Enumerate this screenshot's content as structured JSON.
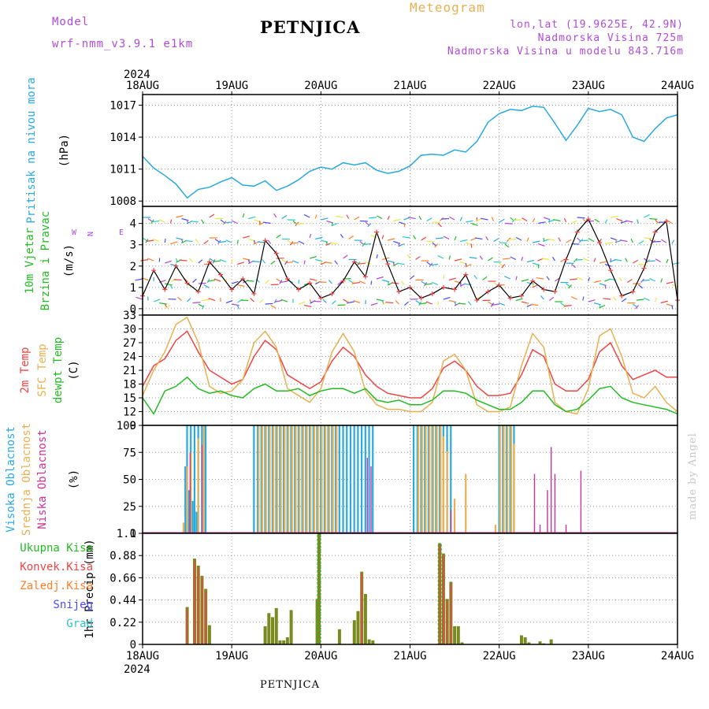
{
  "header": {
    "model_label": "Model",
    "model_name": "wrf-nmm_v3.9.1 e1km",
    "station": "PETNJICA",
    "chart_kind": "Meteogram",
    "lonlat": "lon,lat (19.9625E, 42.9N)",
    "elevation": "Nadmorska Visina 725m",
    "model_elevation": "Nadmorska Visina u modelu 843.716m",
    "credit": "made by Angel",
    "footer_station": "PETNJICA",
    "colors": {
      "model": "#b04ad8",
      "title": "#e8b050",
      "info": "#b04ad8",
      "credit": "#c8c8c8"
    }
  },
  "time_axis": {
    "year": "2024",
    "ticks": [
      "18AUG",
      "19AUG",
      "20AUG",
      "21AUG",
      "22AUG",
      "23AUG",
      "24AUG"
    ],
    "hours_total": 144
  },
  "chart_data": [
    {
      "id": "pressure",
      "type": "line",
      "ylabel_lines": [
        {
          "text": "Pritisak na nivou mora",
          "color": "#29a9e0"
        },
        {
          "text": "(hPa)",
          "color": "#000000"
        }
      ],
      "ylim": [
        1007.5,
        1018
      ],
      "yticks": [
        1008,
        1011,
        1014,
        1017
      ],
      "series": [
        {
          "color": "#29a9e0",
          "x": [
            0,
            3,
            6,
            9,
            12,
            15,
            18,
            21,
            24,
            27,
            30,
            33,
            36,
            39,
            42,
            45,
            48,
            51,
            54,
            57,
            60,
            63,
            66,
            69,
            72,
            75,
            78,
            81,
            84,
            87,
            90,
            93,
            96,
            99,
            102,
            105,
            108,
            111,
            114,
            117,
            120,
            123,
            126,
            129,
            132,
            135,
            138,
            141,
            144
          ],
          "values": [
            1012.2,
            1011.1,
            1010.4,
            1009.6,
            1008.3,
            1009.1,
            1009.3,
            1009.8,
            1010.2,
            1009.5,
            1009.4,
            1009.9,
            1009.0,
            1009.4,
            1010.0,
            1010.8,
            1011.2,
            1011.0,
            1011.6,
            1011.4,
            1011.6,
            1010.9,
            1010.6,
            1010.8,
            1011.3,
            1012.3,
            1012.4,
            1012.3,
            1012.8,
            1012.6,
            1013.6,
            1015.4,
            1016.2,
            1016.6,
            1016.5,
            1016.9,
            1016.8,
            1015.3,
            1013.7,
            1015.1,
            1016.7,
            1016.4,
            1016.6,
            1016.1,
            1014.0,
            1013.6,
            1014.8,
            1015.8,
            1016.1
          ]
        }
      ]
    },
    {
      "id": "wind",
      "type": "line",
      "ylabel_lines": [
        {
          "text": "10m Vjetar",
          "color": "#22bb22"
        },
        {
          "text": "Brzina i Pravac",
          "color": "#22bb22"
        },
        {
          "text": "(m/s)",
          "color": "#000000"
        }
      ],
      "compass_label": "N <--|--> S  W <-- E",
      "ylim": [
        -0.3,
        4.8
      ],
      "yticks": [
        0,
        1,
        2,
        3,
        4
      ],
      "series": [
        {
          "color": "#000000",
          "x": [
            0,
            3,
            6,
            9,
            12,
            15,
            18,
            21,
            24,
            27,
            30,
            33,
            36,
            39,
            42,
            45,
            48,
            51,
            54,
            57,
            60,
            63,
            66,
            69,
            72,
            75,
            78,
            81,
            84,
            87,
            90,
            93,
            96,
            99,
            102,
            105,
            108,
            111,
            114,
            117,
            120,
            123,
            126,
            129,
            132,
            135,
            138,
            141,
            144
          ],
          "values": [
            0.6,
            1.8,
            0.9,
            2.0,
            1.2,
            0.8,
            2.2,
            1.6,
            0.9,
            1.4,
            0.7,
            3.2,
            2.6,
            1.4,
            0.9,
            1.2,
            0.5,
            0.7,
            1.3,
            2.2,
            1.5,
            3.6,
            2.1,
            0.8,
            1.0,
            0.5,
            0.7,
            1.0,
            0.9,
            1.6,
            0.4,
            0.8,
            1.1,
            0.5,
            0.6,
            1.3,
            0.9,
            0.8,
            2.3,
            3.6,
            4.2,
            3.1,
            1.8,
            0.6,
            0.8,
            1.9,
            3.6,
            4.1,
            0.4
          ]
        }
      ]
    },
    {
      "id": "temperature",
      "type": "line",
      "ylabel_lines": [
        {
          "text": "2m Temp",
          "color": "#ee4444"
        },
        {
          "text": "SFC Temp",
          "color": "#e8b050"
        },
        {
          "text": "dewpt Temp",
          "color": "#22bb22"
        },
        {
          "text": "(C)",
          "color": "#000000"
        }
      ],
      "ylim": [
        9,
        33
      ],
      "yticks": [
        9,
        12,
        15,
        18,
        21,
        24,
        27,
        30,
        33
      ],
      "x": [
        0,
        3,
        6,
        9,
        12,
        15,
        18,
        21,
        24,
        27,
        30,
        33,
        36,
        39,
        42,
        45,
        48,
        51,
        54,
        57,
        60,
        63,
        66,
        69,
        72,
        75,
        78,
        81,
        84,
        87,
        90,
        93,
        96,
        99,
        102,
        105,
        108,
        111,
        114,
        117,
        120,
        123,
        126,
        129,
        132,
        135,
        138,
        141,
        144
      ],
      "series": [
        {
          "name": "2m Temp",
          "color": "#ee4444",
          "values": [
            17.5,
            22.0,
            23.5,
            27.5,
            29.5,
            25.0,
            21.0,
            19.5,
            18.0,
            19.0,
            24.0,
            27.5,
            25.5,
            20.0,
            18.5,
            17.0,
            18.5,
            23.0,
            26.0,
            24.0,
            20.0,
            17.5,
            16.0,
            15.5,
            15.0,
            15.0,
            17.0,
            21.5,
            23.0,
            21.0,
            17.5,
            15.5,
            15.5,
            16.0,
            20.0,
            25.5,
            24.0,
            18.0,
            16.5,
            16.5,
            19.0,
            25.0,
            27.0,
            22.0,
            19.0,
            20.0,
            21.0,
            19.5,
            19.5
          ]
        },
        {
          "name": "SFC Temp",
          "color": "#e8b050",
          "values": [
            15.5,
            21.0,
            25.0,
            31.0,
            32.5,
            27.0,
            17.5,
            16.0,
            16.5,
            19.0,
            27.0,
            29.5,
            26.0,
            17.0,
            15.5,
            14.0,
            17.0,
            25.0,
            29.0,
            25.0,
            16.5,
            13.5,
            12.5,
            12.5,
            12.0,
            12.0,
            14.0,
            23.0,
            24.5,
            21.0,
            13.5,
            12.0,
            12.0,
            13.0,
            22.0,
            29.0,
            26.0,
            14.0,
            12.0,
            11.5,
            17.0,
            28.5,
            30.0,
            24.0,
            16.0,
            15.0,
            17.5,
            14.0,
            12.0
          ]
        },
        {
          "name": "dewpt Temp",
          "color": "#22bb22",
          "values": [
            15.0,
            11.5,
            16.5,
            17.5,
            19.5,
            17.0,
            16.0,
            16.5,
            15.5,
            15.0,
            17.0,
            18.0,
            16.5,
            16.5,
            17.0,
            15.5,
            16.5,
            17.0,
            17.0,
            16.0,
            17.0,
            14.5,
            14.0,
            14.5,
            13.5,
            13.5,
            14.5,
            16.5,
            16.5,
            16.0,
            14.5,
            13.5,
            12.5,
            12.5,
            14.0,
            16.5,
            16.5,
            13.5,
            12.0,
            12.5,
            14.5,
            17.0,
            17.5,
            15.0,
            14.0,
            13.5,
            13.0,
            12.5,
            11.5
          ]
        }
      ]
    },
    {
      "id": "cloud",
      "type": "bar",
      "ylabel_lines": [
        {
          "text": "Visoka Oblacnost",
          "color": "#29a9e0"
        },
        {
          "text": "Srednja Oblacnost",
          "color": "#e8b050"
        },
        {
          "text": "Niska Oblacnost",
          "color": "#cc3399"
        },
        {
          "text": "(%)",
          "color": "#000000"
        }
      ],
      "ylim": [
        0,
        100
      ],
      "yticks": [
        0,
        25,
        50,
        75,
        100
      ],
      "series": [
        {
          "name": "Visoka Oblacnost",
          "color": "#29a9e0",
          "segments": [
            {
              "start": 12,
              "end": 17,
              "value": 100
            },
            {
              "start": 30,
              "end": 52,
              "value": 100
            },
            {
              "start": 53,
              "end": 62,
              "value": 100
            },
            {
              "start": 73,
              "end": 83,
              "value": 100
            },
            {
              "start": 96,
              "end": 100,
              "value": 100
            }
          ],
          "points": [
            {
              "x": 11.5,
              "value": 62
            },
            {
              "x": 12.5,
              "value": 40
            },
            {
              "x": 13.5,
              "value": 30
            },
            {
              "x": 14.5,
              "value": 20
            }
          ]
        },
        {
          "name": "Srednja Oblacnost",
          "color": "#e8b050",
          "segments": [
            {
              "start": 31,
              "end": 52,
              "value": 100
            },
            {
              "start": 74,
              "end": 80,
              "value": 100
            },
            {
              "start": 96,
              "end": 99,
              "value": 100
            }
          ],
          "points": [
            {
              "x": 11,
              "value": 10
            },
            {
              "x": 12,
              "value": 62
            },
            {
              "x": 13,
              "value": 75
            },
            {
              "x": 15,
              "value": 88
            },
            {
              "x": 16.5,
              "value": 100
            },
            {
              "x": 81,
              "value": 90
            },
            {
              "x": 82,
              "value": 76
            },
            {
              "x": 84,
              "value": 32
            },
            {
              "x": 87,
              "value": 55
            },
            {
              "x": 95,
              "value": 8
            },
            {
              "x": 100,
              "value": 83
            }
          ]
        },
        {
          "name": "Niska Oblacnost",
          "color": "#cc3399",
          "points": [
            {
              "x": 12.8,
              "value": 75
            },
            {
              "x": 16,
              "value": 82
            },
            {
              "x": 60.5,
              "value": 70
            },
            {
              "x": 61.5,
              "value": 62
            },
            {
              "x": 83,
              "value": 22
            },
            {
              "x": 105.5,
              "value": 55
            },
            {
              "x": 107,
              "value": 8
            },
            {
              "x": 109,
              "value": 40
            },
            {
              "x": 110,
              "value": 80
            },
            {
              "x": 111,
              "value": 55
            },
            {
              "x": 114,
              "value": 8
            },
            {
              "x": 118,
              "value": 58
            }
          ]
        }
      ]
    },
    {
      "id": "precip",
      "type": "bar",
      "ylabel_lines": [
        {
          "text": "1hr Precip (mm)",
          "color": "#000000"
        }
      ],
      "legend": [
        {
          "text": "Ukupna Kisa",
          "color": "#22bb22"
        },
        {
          "text": "Konvek.Kisa",
          "color": "#ee4444"
        },
        {
          "text": "Zaledj.Kisa",
          "color": "#ff7f27"
        },
        {
          "text": "Snijeg",
          "color": "#4b4bff"
        },
        {
          "text": "Grad",
          "color": "#2bc6c6"
        }
      ],
      "ylim": [
        0,
        1.1
      ],
      "yticks": [
        0,
        0.22,
        0.44,
        0.66,
        0.88,
        1.1
      ],
      "tick_labels": [
        "0",
        "0.22",
        "0.44",
        "0.66",
        "0.88",
        "1.1"
      ],
      "series": [
        {
          "name": "Ukupna Kisa",
          "color": "#22bb22",
          "x": [
            12,
            14,
            15,
            16,
            17,
            18,
            33,
            34,
            35,
            36,
            37,
            38,
            39,
            40,
            47,
            47.5,
            53,
            57,
            58,
            59,
            60,
            61,
            62,
            80,
            81,
            82,
            83,
            84,
            85,
            86,
            102,
            103,
            104,
            107,
            108,
            110
          ],
          "values": [
            0.37,
            0.85,
            0.78,
            0.68,
            0.55,
            0.19,
            0.18,
            0.31,
            0.27,
            0.36,
            0.04,
            0.04,
            0.07,
            0.34,
            0.45,
            1.1,
            0.15,
            0.24,
            0.33,
            0.72,
            0.5,
            0.05,
            0.04,
            1.0,
            0.9,
            0.45,
            0.62,
            0.18,
            0.18,
            0.02,
            0.09,
            0.07,
            0.02,
            0.03,
            0.01,
            0.05
          ]
        },
        {
          "name": "Konvek.Kisa",
          "color": "#ee4444",
          "x": [
            12,
            14,
            15,
            16,
            17,
            59,
            80,
            81,
            82,
            83
          ],
          "values": [
            0.35,
            0.82,
            0.76,
            0.66,
            0.52,
            0.7,
            0.98,
            0.88,
            0.42,
            0.6
          ]
        },
        {
          "name": "Zaledj.Kisa",
          "color": "#ff7f27",
          "x": [],
          "values": []
        },
        {
          "name": "Snijeg",
          "color": "#4b4bff",
          "x": [],
          "values": []
        },
        {
          "name": "Grad",
          "color": "#2bc6c6",
          "x": [],
          "values": []
        }
      ]
    }
  ]
}
